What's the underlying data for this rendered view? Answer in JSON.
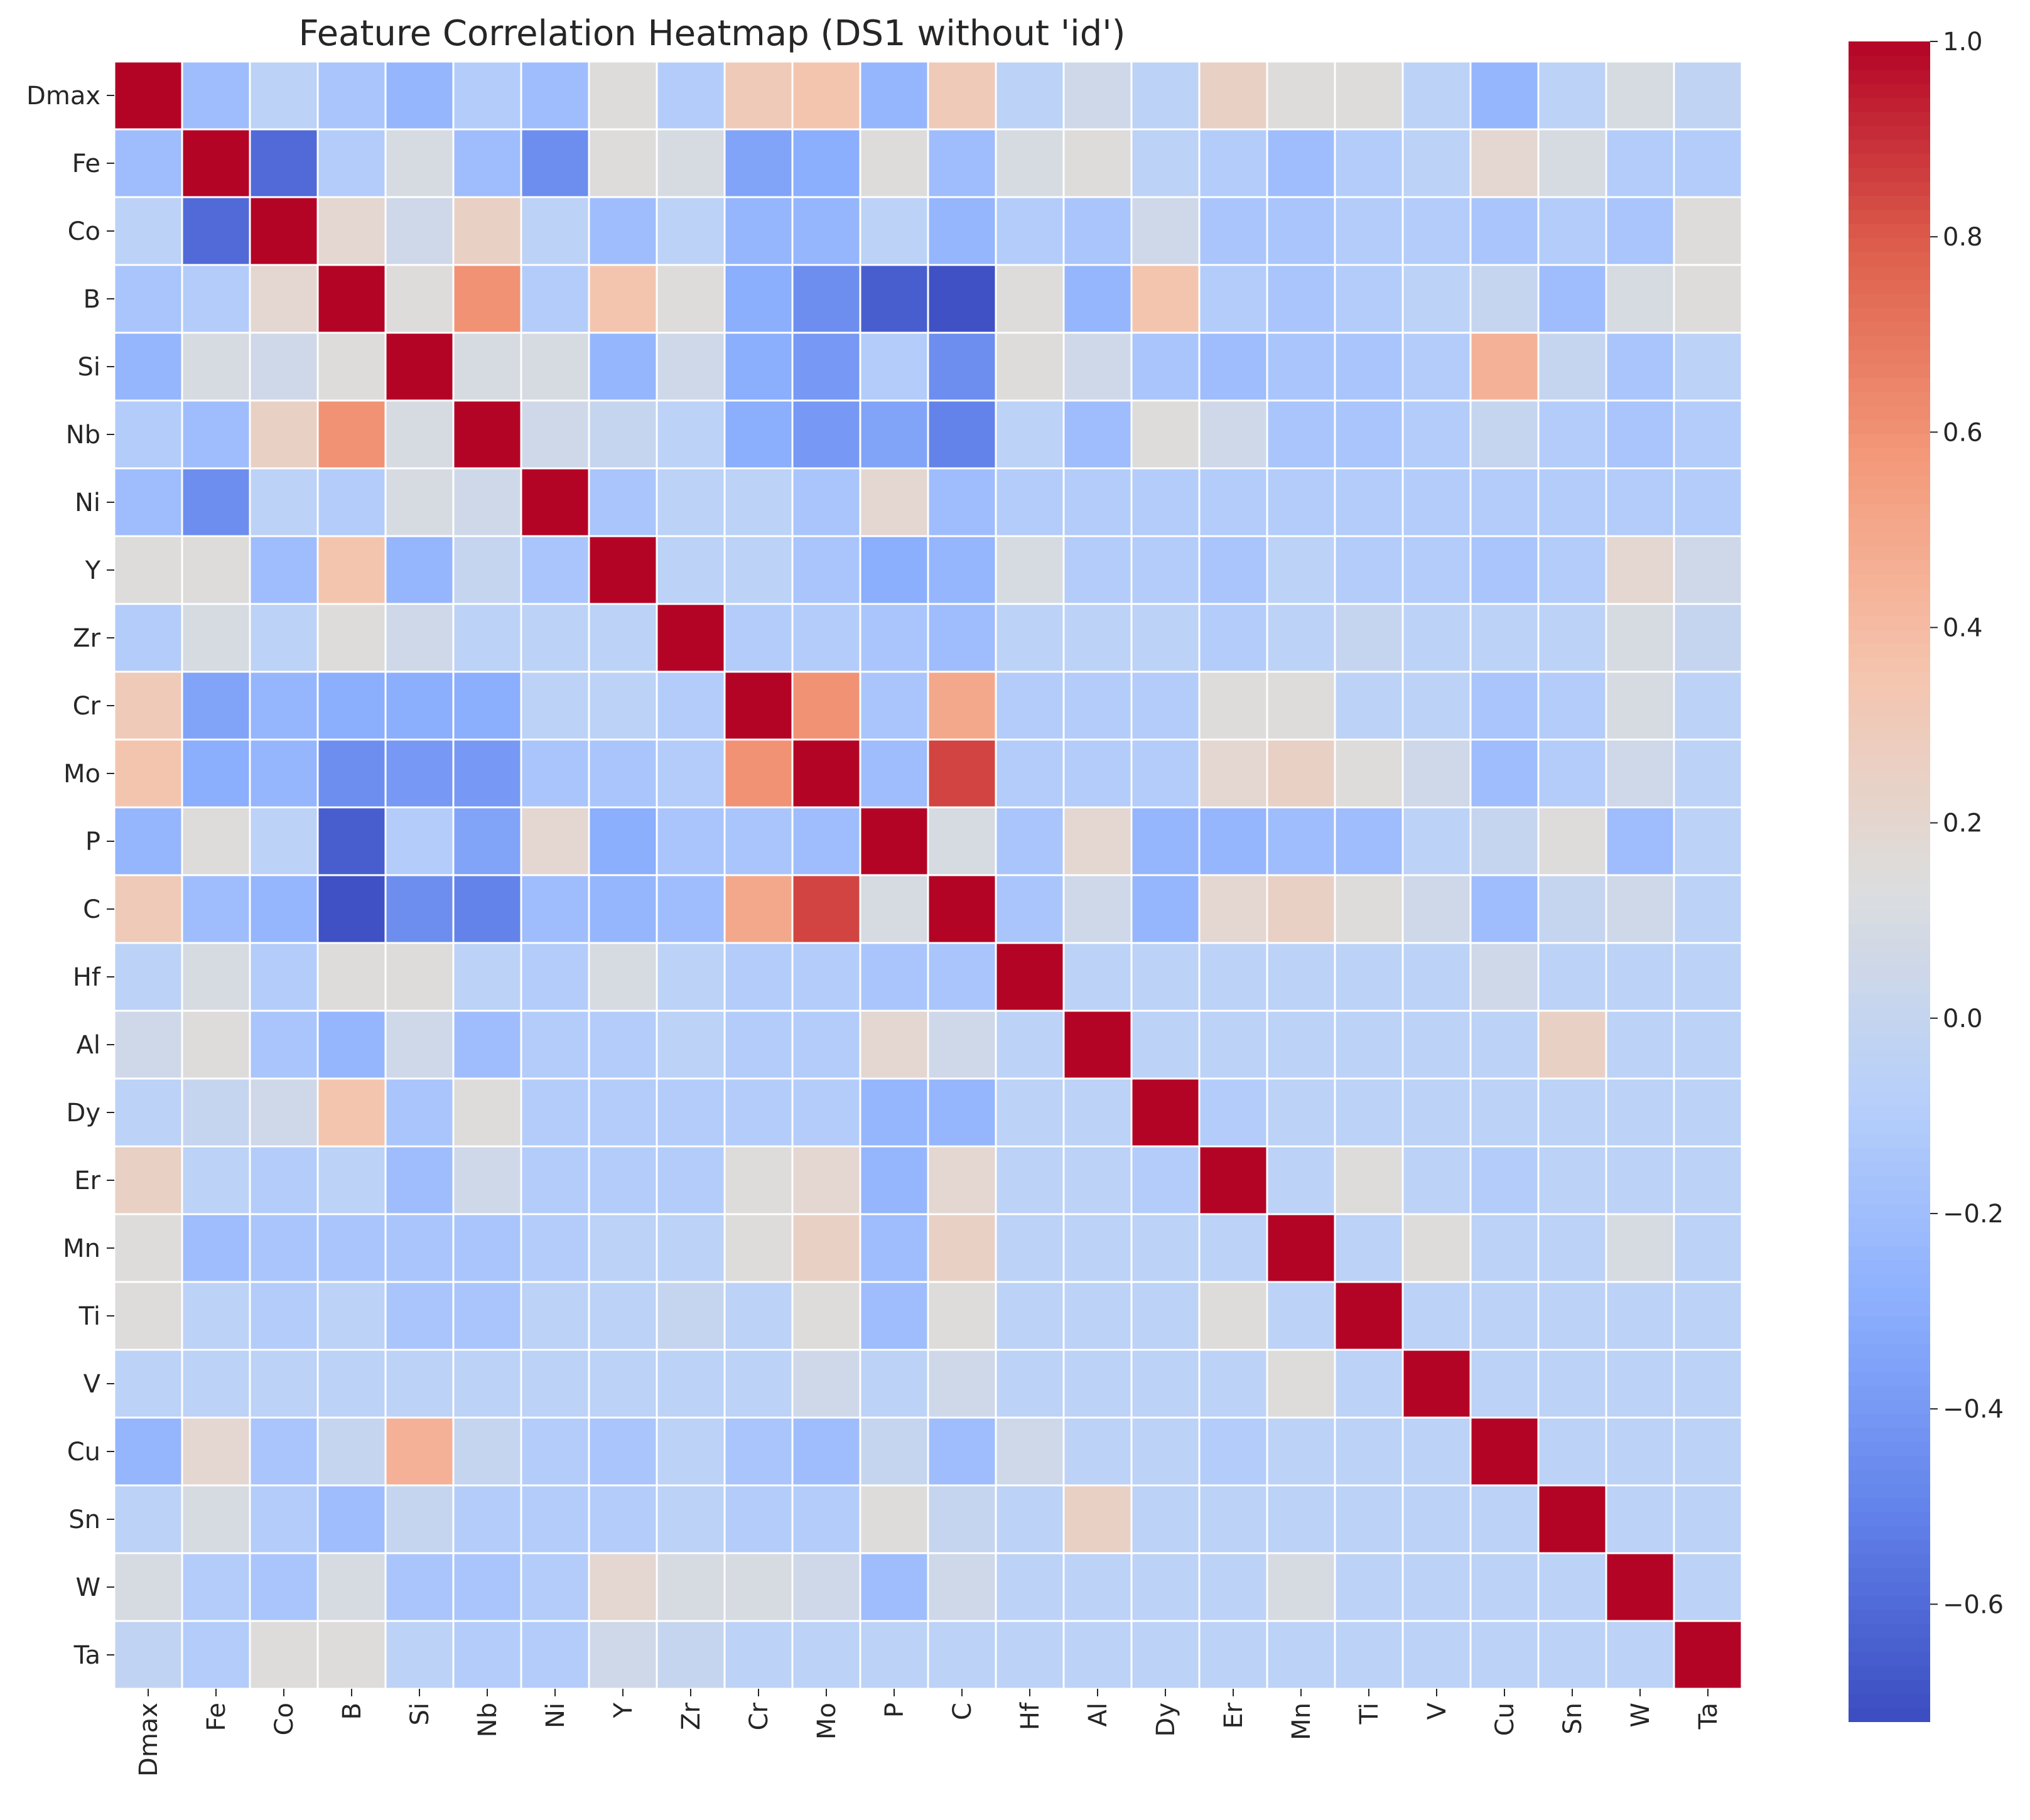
{
  "chart_data": {
    "type": "heatmap",
    "title": "Feature Correlation Heatmap (DS1 without 'id')",
    "xlabel": "",
    "ylabel": "",
    "labels": [
      "Dmax",
      "Fe",
      "Co",
      "B",
      "Si",
      "Nb",
      "Ni",
      "Y",
      "Zr",
      "Cr",
      "Mo",
      "P",
      "C",
      "Hf",
      "Al",
      "Dy",
      "Er",
      "Mn",
      "Ti",
      "V",
      "Cu",
      "Sn",
      "W",
      "Ta"
    ],
    "matrix": [
      [
        1.0,
        -0.2,
        -0.05,
        -0.15,
        -0.25,
        -0.1,
        -0.2,
        0.15,
        -0.1,
        0.3,
        0.35,
        -0.25,
        0.3,
        -0.05,
        0.05,
        -0.05,
        0.25,
        0.15,
        0.15,
        -0.05,
        -0.25,
        -0.05,
        0.1,
        -0.02
      ],
      [
        -0.2,
        1.0,
        -0.6,
        -0.1,
        0.1,
        -0.2,
        -0.45,
        0.15,
        0.1,
        -0.35,
        -0.3,
        0.15,
        -0.2,
        0.1,
        0.15,
        -0.05,
        -0.1,
        -0.2,
        -0.1,
        -0.05,
        0.2,
        0.1,
        -0.1,
        -0.1
      ],
      [
        -0.05,
        -0.6,
        1.0,
        0.2,
        0.05,
        0.25,
        -0.05,
        -0.2,
        -0.05,
        -0.25,
        -0.25,
        -0.05,
        -0.25,
        -0.1,
        -0.15,
        0.05,
        -0.15,
        -0.15,
        -0.1,
        -0.1,
        -0.15,
        -0.1,
        -0.15,
        0.15
      ],
      [
        -0.15,
        -0.1,
        0.2,
        1.0,
        0.15,
        0.6,
        -0.1,
        0.35,
        0.15,
        -0.3,
        -0.45,
        -0.65,
        -0.7,
        0.15,
        -0.25,
        0.35,
        -0.1,
        -0.15,
        -0.1,
        -0.05,
        0.0,
        -0.2,
        0.1,
        0.15
      ],
      [
        -0.25,
        0.1,
        0.05,
        0.15,
        1.0,
        0.1,
        0.1,
        -0.25,
        0.05,
        -0.3,
        -0.4,
        -0.1,
        -0.45,
        0.15,
        0.05,
        -0.15,
        -0.2,
        -0.15,
        -0.15,
        -0.1,
        0.45,
        0.0,
        -0.15,
        -0.05
      ],
      [
        -0.1,
        -0.2,
        0.25,
        0.6,
        0.1,
        1.0,
        0.05,
        0.0,
        -0.05,
        -0.3,
        -0.4,
        -0.35,
        -0.5,
        -0.05,
        -0.2,
        0.15,
        0.05,
        -0.15,
        -0.15,
        -0.1,
        0.0,
        -0.1,
        -0.15,
        -0.1
      ],
      [
        -0.2,
        -0.45,
        -0.05,
        -0.1,
        0.1,
        0.05,
        1.0,
        -0.15,
        -0.05,
        -0.05,
        -0.15,
        0.2,
        -0.2,
        -0.1,
        -0.1,
        -0.1,
        -0.1,
        -0.1,
        -0.1,
        -0.1,
        -0.1,
        -0.1,
        -0.1,
        -0.1
      ],
      [
        0.15,
        0.15,
        -0.2,
        0.35,
        -0.25,
        0.0,
        -0.15,
        1.0,
        -0.05,
        -0.05,
        -0.15,
        -0.3,
        -0.25,
        0.1,
        -0.1,
        -0.1,
        -0.15,
        -0.05,
        -0.1,
        -0.1,
        -0.15,
        -0.1,
        0.2,
        0.05
      ],
      [
        -0.1,
        0.1,
        -0.05,
        0.15,
        0.05,
        -0.05,
        -0.05,
        -0.05,
        1.0,
        -0.1,
        -0.1,
        -0.15,
        -0.2,
        -0.05,
        -0.05,
        -0.05,
        -0.1,
        -0.05,
        0.0,
        -0.05,
        -0.05,
        -0.05,
        0.1,
        0.0
      ],
      [
        0.3,
        -0.35,
        -0.25,
        -0.3,
        -0.3,
        -0.3,
        -0.05,
        -0.05,
        -0.1,
        1.0,
        0.6,
        -0.15,
        0.5,
        -0.1,
        -0.1,
        -0.1,
        0.15,
        0.15,
        -0.05,
        -0.05,
        -0.15,
        -0.1,
        0.1,
        -0.05
      ],
      [
        0.35,
        -0.3,
        -0.25,
        -0.45,
        -0.4,
        -0.4,
        -0.15,
        -0.15,
        -0.1,
        0.6,
        1.0,
        -0.2,
        0.85,
        -0.1,
        -0.1,
        -0.1,
        0.2,
        0.25,
        0.15,
        0.05,
        -0.2,
        -0.1,
        0.05,
        -0.05
      ],
      [
        -0.25,
        0.15,
        -0.05,
        -0.65,
        -0.1,
        -0.35,
        0.2,
        -0.3,
        -0.15,
        -0.15,
        -0.2,
        1.0,
        0.1,
        -0.15,
        0.2,
        -0.25,
        -0.25,
        -0.2,
        -0.2,
        -0.05,
        0.0,
        0.15,
        -0.2,
        -0.05
      ],
      [
        0.3,
        -0.2,
        -0.25,
        -0.7,
        -0.45,
        -0.5,
        -0.2,
        -0.25,
        -0.2,
        0.5,
        0.85,
        0.1,
        1.0,
        -0.15,
        0.05,
        -0.25,
        0.2,
        0.25,
        0.15,
        0.05,
        -0.2,
        0.0,
        0.05,
        -0.05
      ],
      [
        -0.05,
        0.1,
        -0.1,
        0.15,
        0.15,
        -0.05,
        -0.1,
        0.1,
        -0.05,
        -0.1,
        -0.1,
        -0.15,
        -0.15,
        1.0,
        -0.05,
        -0.05,
        -0.05,
        -0.05,
        -0.05,
        -0.05,
        0.05,
        -0.05,
        -0.05,
        -0.05
      ],
      [
        0.05,
        0.15,
        -0.15,
        -0.25,
        0.05,
        -0.2,
        -0.1,
        -0.1,
        -0.05,
        -0.1,
        -0.1,
        0.2,
        0.05,
        -0.05,
        1.0,
        -0.05,
        -0.05,
        -0.05,
        -0.05,
        -0.05,
        -0.05,
        0.25,
        -0.05,
        -0.05
      ],
      [
        -0.05,
        0.0,
        0.05,
        0.35,
        -0.15,
        0.15,
        -0.1,
        -0.1,
        -0.1,
        -0.1,
        -0.1,
        -0.25,
        -0.25,
        -0.05,
        -0.05,
        1.0,
        -0.1,
        -0.05,
        -0.05,
        -0.05,
        -0.05,
        -0.05,
        -0.05,
        -0.05
      ],
      [
        0.25,
        -0.05,
        -0.1,
        -0.05,
        -0.2,
        0.05,
        -0.1,
        -0.1,
        -0.1,
        0.15,
        0.2,
        -0.25,
        0.2,
        -0.05,
        -0.05,
        -0.1,
        1.0,
        -0.05,
        0.15,
        -0.05,
        -0.1,
        -0.05,
        -0.05,
        -0.05
      ],
      [
        0.15,
        -0.2,
        -0.15,
        -0.15,
        -0.15,
        -0.15,
        -0.1,
        -0.05,
        -0.05,
        0.15,
        0.25,
        -0.2,
        0.25,
        -0.05,
        -0.05,
        -0.05,
        -0.05,
        1.0,
        -0.05,
        0.15,
        -0.05,
        -0.05,
        0.1,
        -0.05
      ],
      [
        0.15,
        -0.05,
        -0.1,
        -0.05,
        -0.15,
        -0.15,
        -0.05,
        -0.05,
        0.0,
        -0.05,
        0.15,
        -0.2,
        0.15,
        -0.05,
        -0.05,
        -0.05,
        0.15,
        -0.05,
        1.0,
        -0.05,
        -0.05,
        -0.05,
        -0.05,
        -0.05
      ],
      [
        -0.05,
        -0.05,
        -0.05,
        -0.05,
        -0.05,
        -0.05,
        -0.05,
        -0.05,
        -0.05,
        -0.05,
        0.05,
        -0.05,
        0.05,
        -0.05,
        -0.05,
        -0.05,
        -0.05,
        0.15,
        -0.05,
        1.0,
        -0.05,
        -0.05,
        -0.05,
        -0.05
      ],
      [
        -0.25,
        0.2,
        -0.15,
        0.0,
        0.45,
        0.0,
        -0.1,
        -0.15,
        -0.05,
        -0.15,
        -0.2,
        0.0,
        -0.2,
        0.05,
        -0.05,
        -0.05,
        -0.1,
        -0.05,
        -0.05,
        -0.05,
        1.0,
        -0.05,
        -0.05,
        -0.05
      ],
      [
        -0.05,
        0.1,
        -0.1,
        -0.2,
        0.0,
        -0.1,
        -0.1,
        -0.1,
        -0.05,
        -0.1,
        -0.1,
        0.15,
        0.0,
        -0.05,
        0.25,
        -0.05,
        -0.05,
        -0.05,
        -0.05,
        -0.05,
        -0.05,
        1.0,
        -0.05,
        -0.05
      ],
      [
        0.1,
        -0.1,
        -0.15,
        0.1,
        -0.15,
        -0.15,
        -0.1,
        0.2,
        0.1,
        0.1,
        0.05,
        -0.2,
        0.05,
        -0.05,
        -0.05,
        -0.05,
        -0.05,
        0.1,
        -0.05,
        -0.05,
        -0.05,
        -0.05,
        1.0,
        -0.05
      ],
      [
        -0.02,
        -0.1,
        0.15,
        0.15,
        -0.05,
        -0.1,
        -0.1,
        0.05,
        0.0,
        -0.05,
        -0.05,
        -0.05,
        -0.05,
        -0.05,
        -0.05,
        -0.05,
        -0.05,
        -0.05,
        -0.05,
        -0.05,
        -0.05,
        -0.05,
        -0.05,
        1.0
      ]
    ],
    "colormap": "coolwarm",
    "vmin": -0.72,
    "vmax": 1.0,
    "colorbar_ticks": [
      -0.6,
      -0.4,
      -0.2,
      0.0,
      0.2,
      0.4,
      0.6,
      0.8,
      1.0
    ],
    "colorbar_tick_labels": [
      "−0.6",
      "−0.4",
      "−0.2",
      "0.0",
      "0.2",
      "0.4",
      "0.6",
      "0.8",
      "1.0"
    ]
  }
}
